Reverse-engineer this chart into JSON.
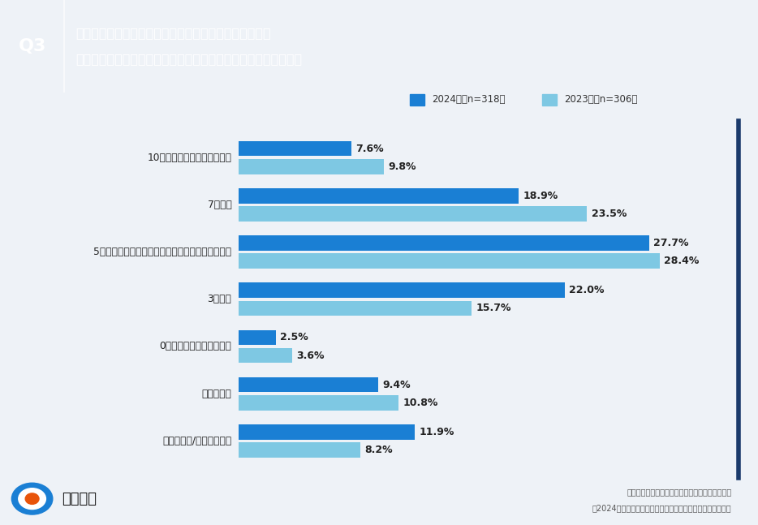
{
  "categories": [
    "10割（全てオンライン会議）",
    "7割程度",
    "5割程度（オンライン会議と対面会議が半分ずつ）",
    "3割程度",
    "0割（全て対面での会議）",
    "会議がない",
    "わからない/答えられない"
  ],
  "values_2024": [
    7.6,
    18.9,
    27.7,
    22.0,
    2.5,
    9.4,
    11.9
  ],
  "values_2023": [
    9.8,
    23.5,
    28.4,
    15.7,
    3.6,
    10.8,
    8.2
  ],
  "color_2024": "#1a7fd4",
  "color_2023": "#7ec8e3",
  "legend_2024": "2024年（n=318）",
  "legend_2023": "2023年（n=306）",
  "background_color": "#eef2f7",
  "header_bg": "#1a3a6b",
  "header_q_bg": "#162f58",
  "header_text_line1": "お勤め先企業の社外会議（顧客、取引先、協力会社等を",
  "header_text_line2": "相手とした会議）でのオンライン会議の比率を教えてください。",
  "q_label": "Q3",
  "footer_line1": "一般社団法人オンラインコミュニケーション協会",
  "footer_line2": "【2024年版】大企業のオンライン会議活用に関する定点調査",
  "brand_name": "リサピー",
  "xlim": [
    0,
    33
  ],
  "right_border_color": "#1a3a6b"
}
